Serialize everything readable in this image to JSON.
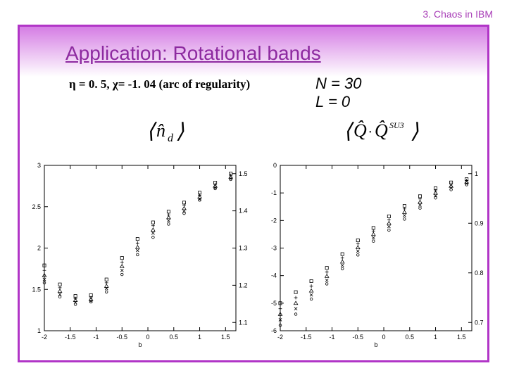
{
  "header": {
    "text": "3. Chaos in IBM"
  },
  "title": "Application: Rotational bands",
  "subtitle_left": "η = 0. 5, χ= -1. 04 (arc of regularity)",
  "subtitle_right_line1": "N = 30",
  "subtitle_right_line2": "L = 0",
  "expectation_left": "⟨n̂_d⟩",
  "expectation_right": "⟨Q̂·Q̂^{SU3}⟩",
  "left_chart": {
    "type": "scatter",
    "xlim": [
      -2,
      1.7
    ],
    "ylim": [
      1,
      3
    ],
    "xticks": [
      -2,
      -1.5,
      -1,
      -0.5,
      0,
      0.5,
      1,
      1.5
    ],
    "yticks": [
      1,
      1.5,
      2,
      2.5,
      3
    ],
    "xlabel": "b",
    "plot_bg": "#ffffff",
    "axis_color": "#000000",
    "markers": [
      "circle",
      "x",
      "triangle",
      "plus",
      "square"
    ],
    "marker_color": "#000000",
    "marker_size": 3,
    "series": [
      {
        "marker": "circle",
        "x": [
          -2,
          -1.7,
          -1.4,
          -1.1,
          -0.8,
          -0.5,
          -0.2,
          0.1,
          0.4,
          0.7,
          1.0,
          1.3,
          1.6
        ],
        "y": [
          1.58,
          1.41,
          1.32,
          1.35,
          1.47,
          1.68,
          1.92,
          2.13,
          2.29,
          2.42,
          2.58,
          2.72,
          2.83
        ]
      },
      {
        "marker": "x",
        "x": [
          -2,
          -1.7,
          -1.4,
          -1.1,
          -0.8,
          -0.5,
          -0.2,
          0.1,
          0.4,
          0.7,
          1.0,
          1.3,
          1.6
        ],
        "y": [
          1.62,
          1.44,
          1.34,
          1.36,
          1.51,
          1.73,
          1.97,
          2.18,
          2.33,
          2.45,
          2.59,
          2.73,
          2.84
        ]
      },
      {
        "marker": "triangle",
        "x": [
          -2,
          -1.7,
          -1.4,
          -1.1,
          -0.8,
          -0.5,
          -0.2,
          0.1,
          0.4,
          0.7,
          1.0,
          1.3,
          1.6
        ],
        "y": [
          1.67,
          1.48,
          1.37,
          1.38,
          1.54,
          1.78,
          2.01,
          2.22,
          2.37,
          2.48,
          2.62,
          2.75,
          2.86
        ]
      },
      {
        "marker": "plus",
        "x": [
          -2,
          -1.7,
          -1.4,
          -1.1,
          -0.8,
          -0.5,
          -0.2,
          0.1,
          0.4,
          0.7,
          1.0,
          1.3,
          1.6
        ],
        "y": [
          1.73,
          1.52,
          1.39,
          1.4,
          1.58,
          1.83,
          2.06,
          2.27,
          2.4,
          2.52,
          2.64,
          2.77,
          2.88
        ]
      },
      {
        "marker": "square",
        "x": [
          -2,
          -1.7,
          -1.4,
          -1.1,
          -0.8,
          -0.5,
          -0.2,
          0.1,
          0.4,
          0.7,
          1.0,
          1.3,
          1.6
        ],
        "y": [
          1.79,
          1.56,
          1.42,
          1.43,
          1.62,
          1.88,
          2.11,
          2.31,
          2.44,
          2.55,
          2.67,
          2.79,
          2.9
        ]
      }
    ],
    "right_axis_ticks": [
      1.1,
      1.2,
      1.3,
      1.4,
      1.5
    ]
  },
  "right_chart": {
    "type": "scatter",
    "xlim": [
      -2,
      1.7
    ],
    "ylim": [
      -6,
      0
    ],
    "xticks": [
      -2,
      -1.5,
      -1,
      -0.5,
      0,
      0.5,
      1,
      1.5
    ],
    "yticks": [
      -6,
      -5,
      -4,
      -3,
      -2,
      -1,
      0
    ],
    "xlabel": "b",
    "plot_bg": "#ffffff",
    "axis_color": "#000000",
    "markers": [
      "circle",
      "x",
      "triangle",
      "plus",
      "square"
    ],
    "marker_color": "#000000",
    "marker_size": 3,
    "series": [
      {
        "marker": "circle",
        "x": [
          -2,
          -1.7,
          -1.4,
          -1.1,
          -0.8,
          -0.5,
          -0.2,
          0.1,
          0.4,
          0.7,
          1.0,
          1.3,
          1.6
        ],
        "y": [
          -5.8,
          -5.4,
          -4.85,
          -4.3,
          -3.75,
          -3.25,
          -2.75,
          -2.35,
          -1.95,
          -1.55,
          -1.18,
          -0.88,
          -0.7
        ]
      },
      {
        "marker": "x",
        "x": [
          -2,
          -1.7,
          -1.4,
          -1.1,
          -0.8,
          -0.5,
          -0.2,
          0.1,
          0.4,
          0.7,
          1.0,
          1.3,
          1.6
        ],
        "y": [
          -5.6,
          -5.2,
          -4.7,
          -4.17,
          -3.63,
          -3.11,
          -2.63,
          -2.22,
          -1.82,
          -1.44,
          -1.1,
          -0.82,
          -0.66
        ]
      },
      {
        "marker": "triangle",
        "x": [
          -2,
          -1.7,
          -1.4,
          -1.1,
          -0.8,
          -0.5,
          -0.2,
          0.1,
          0.4,
          0.7,
          1.0,
          1.3,
          1.6
        ],
        "y": [
          -5.4,
          -5.0,
          -4.55,
          -4.02,
          -3.5,
          -2.98,
          -2.5,
          -2.1,
          -1.7,
          -1.33,
          -1.0,
          -0.75,
          -0.6
        ]
      },
      {
        "marker": "plus",
        "x": [
          -2,
          -1.7,
          -1.4,
          -1.1,
          -0.8,
          -0.5,
          -0.2,
          0.1,
          0.4,
          0.7,
          1.0,
          1.3,
          1.6
        ],
        "y": [
          -5.2,
          -4.8,
          -4.38,
          -3.87,
          -3.36,
          -2.85,
          -2.38,
          -1.97,
          -1.58,
          -1.22,
          -0.92,
          -0.68,
          -0.55
        ]
      },
      {
        "marker": "square",
        "x": [
          -2,
          -1.7,
          -1.4,
          -1.1,
          -0.8,
          -0.5,
          -0.2,
          0.1,
          0.4,
          0.7,
          1.0,
          1.3,
          1.6
        ],
        "y": [
          -5.0,
          -4.6,
          -4.2,
          -3.72,
          -3.22,
          -2.72,
          -2.27,
          -1.85,
          -1.47,
          -1.12,
          -0.83,
          -0.62,
          -0.5
        ]
      }
    ],
    "right_axis_ticks": [
      0.7,
      0.8,
      0.9,
      1.0
    ]
  },
  "style": {
    "background_color": "#ffffff",
    "frame_border_color": "#b135c7",
    "title_color": "#8d2aa0",
    "header_color": "#a93fb8",
    "text_color": "#000000",
    "frame_gradient_top": "#d57de4"
  }
}
